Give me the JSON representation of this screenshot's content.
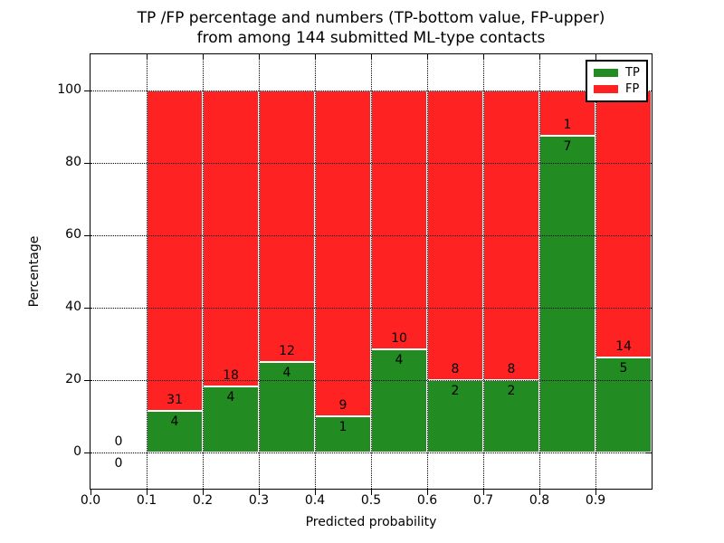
{
  "chart_data": {
    "type": "bar",
    "stacked": true,
    "percent_stacked": true,
    "title": "TP /FP percentage and numbers (TP-bottom value, FP-upper)\nfrom among 144 submitted ML-type contacts",
    "xlabel": "Predicted probability",
    "ylabel": "Percentage",
    "xlim": [
      0.0,
      1.0
    ],
    "ylim": [
      -10,
      110
    ],
    "xticks": [
      "0.0",
      "0.1",
      "0.2",
      "0.3",
      "0.4",
      "0.5",
      "0.6",
      "0.7",
      "0.8",
      "0.9"
    ],
    "yticks": [
      "0",
      "20",
      "40",
      "60",
      "80",
      "100"
    ],
    "grid": "dotted",
    "grid_above_bars": true,
    "legend_position": "upper-right",
    "total_contacts": 144,
    "series": [
      {
        "name": "TP",
        "color": "#228B22"
      },
      {
        "name": "FP",
        "color": "#FF2222"
      }
    ],
    "bar_edge_color": "#ffffff",
    "bins": [
      {
        "x0": 0.0,
        "x1": 0.1,
        "tp": 0,
        "fp": 0
      },
      {
        "x0": 0.1,
        "x1": 0.2,
        "tp": 4,
        "fp": 31
      },
      {
        "x0": 0.2,
        "x1": 0.3,
        "tp": 4,
        "fp": 18
      },
      {
        "x0": 0.3,
        "x1": 0.4,
        "tp": 4,
        "fp": 12
      },
      {
        "x0": 0.4,
        "x1": 0.5,
        "tp": 1,
        "fp": 9
      },
      {
        "x0": 0.5,
        "x1": 0.6,
        "tp": 4,
        "fp": 10
      },
      {
        "x0": 0.6,
        "x1": 0.7,
        "tp": 2,
        "fp": 8
      },
      {
        "x0": 0.7,
        "x1": 0.8,
        "tp": 2,
        "fp": 8
      },
      {
        "x0": 0.8,
        "x1": 0.9,
        "tp": 7,
        "fp": 1
      },
      {
        "x0": 0.9,
        "x1": 1.0,
        "tp": 5,
        "fp": 14
      }
    ]
  }
}
